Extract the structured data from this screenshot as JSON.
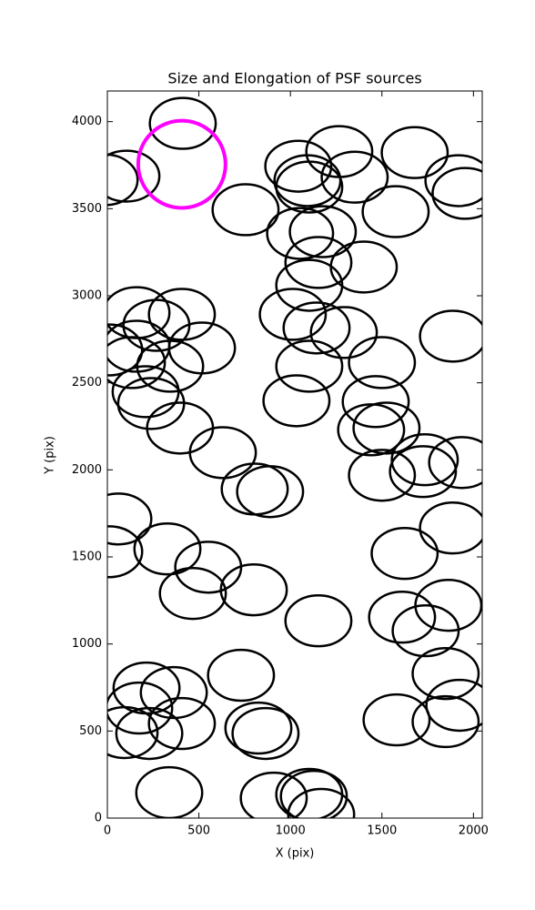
{
  "chart_data": {
    "type": "ellipse",
    "title": "Size and Elongation of PSF sources",
    "xlabel": "X (pix)",
    "ylabel": "Y (pix)",
    "xlim": [
      0,
      2048
    ],
    "ylim": [
      0,
      4176
    ],
    "xticks": [
      0,
      500,
      1000,
      1500,
      2000
    ],
    "yticks": [
      0,
      500,
      1000,
      1500,
      2000,
      2500,
      3000,
      3500,
      4000
    ],
    "series": [
      {
        "color": "#000000",
        "x": [
          412,
          104,
          -15,
          755,
          1043,
          1267,
          1093,
          1103,
          1679,
          1351,
          1918,
          1957,
          1053,
          1177,
          1575,
          1401,
          1153,
          1103,
          1013,
          1143,
          1292,
          1103,
          1033,
          1500,
          1466,
          1525,
          1441,
          1500,
          1724,
          1734,
          1938,
          1888,
          1888,
          1624,
          1863,
          1610,
          1739,
          1848,
          1580,
          1848,
          1923,
          1153,
          159,
          407,
          268,
          517,
          10,
          159,
          134,
          209,
          343,
          239,
          397,
          631,
          805,
          889,
          60,
          10,
          328,
          551,
          467,
          800,
          730,
          214,
          363,
          174,
          407,
          94,
          229,
          825,
          864,
          338,
          909,
          1103,
          1128,
          1168
        ],
        "y": [
          3990,
          3687,
          3666,
          3494,
          3744,
          3828,
          3661,
          3624,
          3822,
          3681,
          3661,
          3588,
          3358,
          3368,
          3483,
          3165,
          3191,
          3060,
          2893,
          2815,
          2789,
          2595,
          2397,
          2616,
          2392,
          2240,
          2230,
          1969,
          1990,
          2058,
          2042,
          2768,
          1666,
          1520,
          1222,
          1154,
          1076,
          830,
          564,
          554,
          648,
          1133,
          2903,
          2893,
          2830,
          2700,
          2689,
          2710,
          2616,
          2449,
          2595,
          2381,
          2240,
          2099,
          1890,
          1875,
          1718,
          1530,
          1546,
          1441,
          1290,
          1311,
          820,
          747,
          721,
          632,
          543,
          491,
          486,
          517,
          486,
          146,
          115,
          136,
          125,
          21
        ],
        "width": [
          360,
          360,
          360,
          360,
          360,
          360,
          360,
          360,
          360,
          360,
          360,
          360,
          360,
          360,
          360,
          360,
          360,
          360,
          360,
          360,
          360,
          360,
          360,
          360,
          360,
          360,
          360,
          360,
          360,
          360,
          360,
          360,
          360,
          360,
          360,
          360,
          360,
          360,
          360,
          360,
          360,
          360,
          360,
          360,
          360,
          360,
          360,
          360,
          360,
          360,
          360,
          360,
          360,
          360,
          360,
          360,
          360,
          360,
          360,
          360,
          360,
          360,
          360,
          360,
          360,
          360,
          360,
          360,
          360,
          360,
          360,
          360,
          360,
          360,
          360,
          360
        ],
        "height": [
          292,
          292,
          292,
          292,
          292,
          292,
          292,
          292,
          292,
          292,
          292,
          292,
          292,
          292,
          292,
          292,
          292,
          292,
          292,
          292,
          292,
          292,
          292,
          292,
          292,
          292,
          292,
          292,
          292,
          292,
          292,
          292,
          292,
          292,
          292,
          292,
          292,
          292,
          292,
          292,
          292,
          292,
          292,
          292,
          292,
          292,
          292,
          292,
          292,
          292,
          292,
          292,
          292,
          292,
          292,
          292,
          292,
          292,
          292,
          292,
          292,
          292,
          292,
          292,
          292,
          292,
          292,
          292,
          292,
          292,
          292,
          292,
          292,
          292,
          292,
          292
        ]
      },
      {
        "color": "#ff00ff",
        "x": [
          407
        ],
        "y": [
          3755
        ],
        "width": [
          477
        ],
        "height": [
          501
        ]
      }
    ]
  }
}
